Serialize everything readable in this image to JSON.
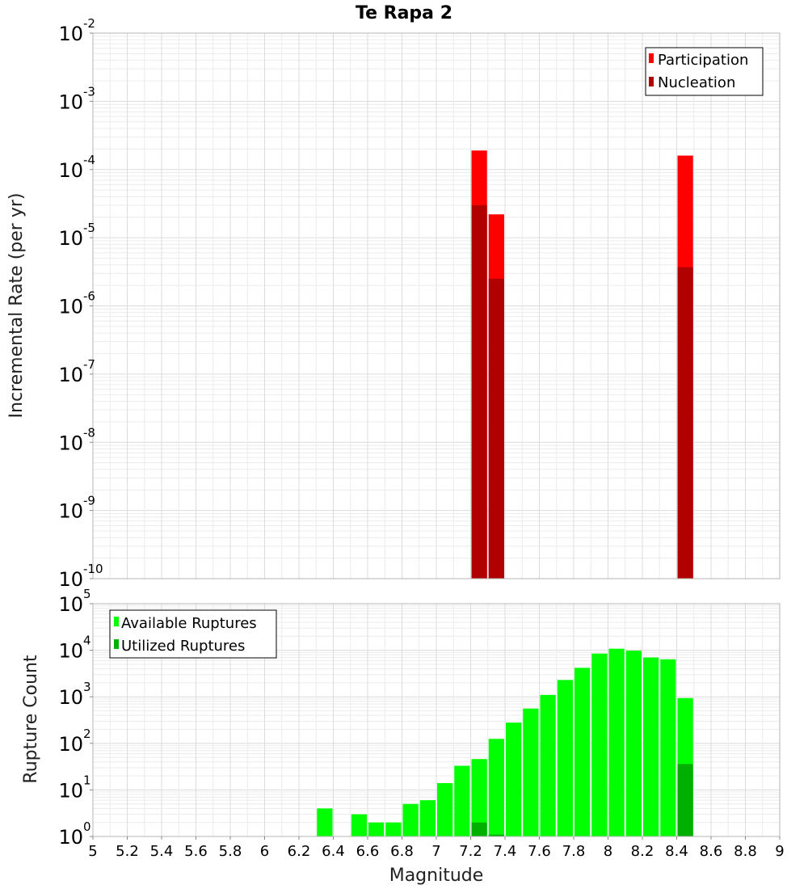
{
  "chart_data": [
    {
      "type": "bar",
      "title": "Te Rapa 2",
      "xlabel": "Magnitude",
      "ylabel": "Incremental Rate (per yr)",
      "yscale": "log",
      "ylim_exponents": [
        -10,
        -2
      ],
      "xlim": [
        5,
        9
      ],
      "bin_width": 0.1,
      "legend_position": "top-right",
      "series": [
        {
          "name": "Participation",
          "color": "#ff0000",
          "points": [
            {
              "x": 7.25,
              "y": 0.00019
            },
            {
              "x": 7.35,
              "y": 2.2e-05
            },
            {
              "x": 8.45,
              "y": 0.00016
            }
          ]
        },
        {
          "name": "Nucleation",
          "color": "#b00000",
          "points": [
            {
              "x": 7.25,
              "y": 3e-05
            },
            {
              "x": 7.35,
              "y": 2.5e-06
            },
            {
              "x": 8.45,
              "y": 3.7e-06
            }
          ]
        }
      ]
    },
    {
      "type": "bar",
      "xlabel": "Magnitude",
      "ylabel": "Rupture Count",
      "yscale": "log",
      "ylim_exponents": [
        0,
        5
      ],
      "xlim": [
        5,
        9
      ],
      "bin_width": 0.1,
      "x_ticks": [
        "5",
        "5.2",
        "5.4",
        "5.6",
        "5.8",
        "6",
        "6.2",
        "6.4",
        "6.6",
        "6.8",
        "7",
        "7.2",
        "7.4",
        "7.6",
        "7.8",
        "8",
        "8.2",
        "8.4",
        "8.6",
        "8.8",
        "9"
      ],
      "legend_position": "top-left",
      "series": [
        {
          "name": "Available Ruptures",
          "color": "#00ff00",
          "points": [
            {
              "x": 6.35,
              "y": 4
            },
            {
              "x": 6.55,
              "y": 3
            },
            {
              "x": 6.65,
              "y": 2
            },
            {
              "x": 6.75,
              "y": 2
            },
            {
              "x": 6.85,
              "y": 5
            },
            {
              "x": 6.95,
              "y": 6
            },
            {
              "x": 7.05,
              "y": 14
            },
            {
              "x": 7.15,
              "y": 33
            },
            {
              "x": 7.25,
              "y": 46
            },
            {
              "x": 7.35,
              "y": 125
            },
            {
              "x": 7.45,
              "y": 280
            },
            {
              "x": 7.55,
              "y": 560
            },
            {
              "x": 7.65,
              "y": 1100
            },
            {
              "x": 7.75,
              "y": 2300
            },
            {
              "x": 7.85,
              "y": 4200
            },
            {
              "x": 7.95,
              "y": 8500
            },
            {
              "x": 8.05,
              "y": 10800
            },
            {
              "x": 8.15,
              "y": 9800
            },
            {
              "x": 8.25,
              "y": 7000
            },
            {
              "x": 8.35,
              "y": 6400
            },
            {
              "x": 8.45,
              "y": 940
            }
          ]
        },
        {
          "name": "Utilized Ruptures",
          "color": "#00b000",
          "points": [
            {
              "x": 7.25,
              "y": 2
            },
            {
              "x": 7.35,
              "y": 1.1
            },
            {
              "x": 8.45,
              "y": 36
            }
          ]
        }
      ]
    }
  ]
}
